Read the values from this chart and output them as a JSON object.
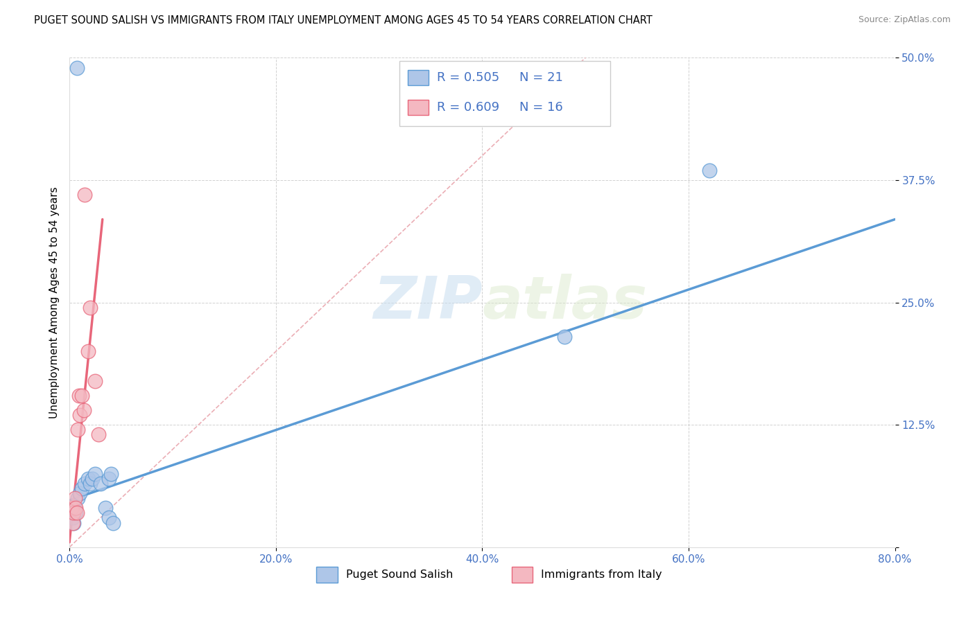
{
  "title": "PUGET SOUND SALISH VS IMMIGRANTS FROM ITALY UNEMPLOYMENT AMONG AGES 45 TO 54 YEARS CORRELATION CHART",
  "source": "Source: ZipAtlas.com",
  "ylabel": "Unemployment Among Ages 45 to 54 years",
  "xlim": [
    0.0,
    0.8
  ],
  "ylim": [
    0.0,
    0.5
  ],
  "xticks": [
    0.0,
    0.2,
    0.4,
    0.6,
    0.8
  ],
  "yticks": [
    0.0,
    0.125,
    0.25,
    0.375,
    0.5
  ],
  "xtick_labels": [
    "0.0%",
    "20.0%",
    "40.0%",
    "60.0%",
    "80.0%"
  ],
  "ytick_labels": [
    "",
    "12.5%",
    "25.0%",
    "37.5%",
    "50.0%"
  ],
  "blue_scatter_x": [
    0.007,
    0.003,
    0.004,
    0.005,
    0.006,
    0.008,
    0.01,
    0.012,
    0.015,
    0.018,
    0.02,
    0.022,
    0.025,
    0.03,
    0.035,
    0.038,
    0.04,
    0.038,
    0.042,
    0.48,
    0.62
  ],
  "blue_scatter_y": [
    0.49,
    0.03,
    0.025,
    0.04,
    0.035,
    0.05,
    0.055,
    0.06,
    0.065,
    0.07,
    0.065,
    0.07,
    0.075,
    0.065,
    0.04,
    0.07,
    0.075,
    0.03,
    0.025,
    0.215,
    0.385
  ],
  "pink_scatter_x": [
    0.002,
    0.003,
    0.004,
    0.005,
    0.006,
    0.007,
    0.008,
    0.009,
    0.01,
    0.012,
    0.014,
    0.015,
    0.018,
    0.02,
    0.025,
    0.028
  ],
  "pink_scatter_y": [
    0.04,
    0.025,
    0.035,
    0.05,
    0.04,
    0.035,
    0.12,
    0.155,
    0.135,
    0.155,
    0.14,
    0.36,
    0.2,
    0.245,
    0.17,
    0.115
  ],
  "blue_line_x": [
    0.0,
    0.8
  ],
  "blue_line_y": [
    0.048,
    0.335
  ],
  "pink_line_x": [
    0.0,
    0.032
  ],
  "pink_line_y": [
    0.005,
    0.335
  ],
  "ref_line_x": [
    0.0,
    0.5
  ],
  "ref_line_y": [
    0.0,
    0.5
  ],
  "blue_color": "#5b9bd5",
  "pink_color": "#e8667a",
  "blue_fill": "#aec6e8",
  "pink_fill": "#f4b8c1",
  "ref_line_color": "#e8a0a8",
  "watermark_zip": "ZIP",
  "watermark_atlas": "atlas",
  "background_color": "#ffffff",
  "grid_color": "#cccccc",
  "title_fontsize": 10.5,
  "axis_label_fontsize": 11,
  "tick_fontsize": 11,
  "source_fontsize": 9,
  "legend_r_text_1": "R = 0.505",
  "legend_n_text_1": "N = 21",
  "legend_r_text_2": "R = 0.609",
  "legend_n_text_2": "N = 16",
  "legend_text_color": "#4472c4",
  "bottom_legend_label1": "Puget Sound Salish",
  "bottom_legend_label2": "Immigrants from Italy"
}
